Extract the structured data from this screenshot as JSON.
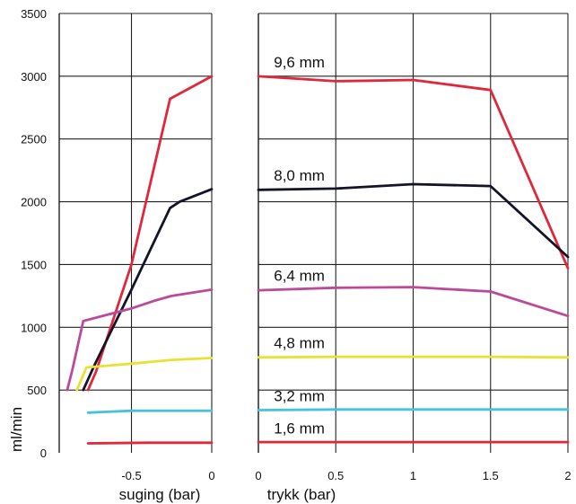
{
  "chart_data": {
    "type": "line",
    "ylabel": "ml/min",
    "ylim": [
      0,
      3500
    ],
    "yticks": [
      "0",
      "500",
      "1000",
      "1500",
      "2000",
      "2500",
      "3000",
      "3500"
    ],
    "grid": true,
    "panels": [
      {
        "id": "suction",
        "xlabel": "suging (bar)",
        "xlim": [
          -0.95,
          0
        ],
        "xticks": [
          {
            "value": -0.5,
            "label": "-0.5"
          },
          {
            "value": 0,
            "label": "0"
          }
        ],
        "series": [
          {
            "name": "9,6 mm",
            "color": "#e0283c",
            "x": [
              -0.77,
              -0.72,
              -0.5,
              -0.26,
              0
            ],
            "y": [
              500,
              650,
              1500,
              2820,
              3000
            ]
          },
          {
            "name": "8,0 mm",
            "color": "#141428",
            "x": [
              -0.8,
              -0.73,
              -0.5,
              -0.26,
              -0.2,
              0
            ],
            "y": [
              500,
              700,
              1300,
              1950,
              2000,
              2100
            ]
          },
          {
            "name": "6,4 mm",
            "color": "#bb4a9a",
            "x": [
              -0.9,
              -0.87,
              -0.8,
              -0.5,
              -0.36,
              -0.25,
              0
            ],
            "y": [
              500,
              650,
              1050,
              1150,
              1210,
              1250,
              1300
            ]
          },
          {
            "name": "4,8 mm",
            "color": "#e8e232",
            "x": [
              -0.84,
              -0.78,
              -0.5,
              -0.25,
              0
            ],
            "y": [
              500,
              680,
              710,
              740,
              755
            ]
          },
          {
            "name": "3,2 mm",
            "color": "#47c2dc",
            "x": [
              -0.77,
              -0.5,
              0
            ],
            "y": [
              320,
              335,
              335
            ]
          },
          {
            "name": "1,6 mm",
            "color": "#e0283c",
            "x": [
              -0.77,
              -0.4,
              0
            ],
            "y": [
              75,
              80,
              80
            ]
          }
        ]
      },
      {
        "id": "pressure",
        "xlabel": "trykk (bar)",
        "xlim": [
          0,
          2
        ],
        "xticks": [
          {
            "value": 0,
            "label": "0"
          },
          {
            "value": 0.5,
            "label": "0.5"
          },
          {
            "value": 1,
            "label": "1"
          },
          {
            "value": 1.5,
            "label": "1.5"
          },
          {
            "value": 2,
            "label": "2"
          }
        ],
        "series": [
          {
            "name": "9,6 mm",
            "color": "#e0283c",
            "x": [
              0,
              0.5,
              1,
              1.5,
              2
            ],
            "y": [
              3000,
              2960,
              2970,
              2890,
              1470
            ]
          },
          {
            "name": "8,0 mm",
            "color": "#141428",
            "x": [
              0,
              0.5,
              1,
              1.5,
              2
            ],
            "y": [
              2095,
              2105,
              2140,
              2125,
              1560
            ]
          },
          {
            "name": "6,4 mm",
            "color": "#bb4a9a",
            "x": [
              0,
              0.5,
              1,
              1.5,
              2
            ],
            "y": [
              1295,
              1315,
              1320,
              1285,
              1090
            ]
          },
          {
            "name": "4,8 mm",
            "color": "#e8e232",
            "x": [
              0,
              0.5,
              1,
              1.5,
              2
            ],
            "y": [
              760,
              765,
              765,
              765,
              760
            ]
          },
          {
            "name": "3,2 mm",
            "color": "#47c2dc",
            "x": [
              0,
              0.5,
              1,
              1.5,
              2
            ],
            "y": [
              340,
              345,
              345,
              345,
              345
            ]
          },
          {
            "name": "1,6 mm",
            "color": "#e0283c",
            "x": [
              0,
              0.5,
              1,
              1.5,
              2
            ],
            "y": [
              85,
              85,
              85,
              85,
              85
            ]
          }
        ],
        "labels": [
          {
            "text": "9,6 mm",
            "x": 0.1,
            "y": 3070
          },
          {
            "text": "8,0 mm",
            "x": 0.1,
            "y": 2170
          },
          {
            "text": "6,4 mm",
            "x": 0.1,
            "y": 1370
          },
          {
            "text": "4,8 mm",
            "x": 0.1,
            "y": 835
          },
          {
            "text": "3,2 mm",
            "x": 0.1,
            "y": 410
          },
          {
            "text": "1,6 mm",
            "x": 0.1,
            "y": 155
          }
        ]
      }
    ]
  }
}
